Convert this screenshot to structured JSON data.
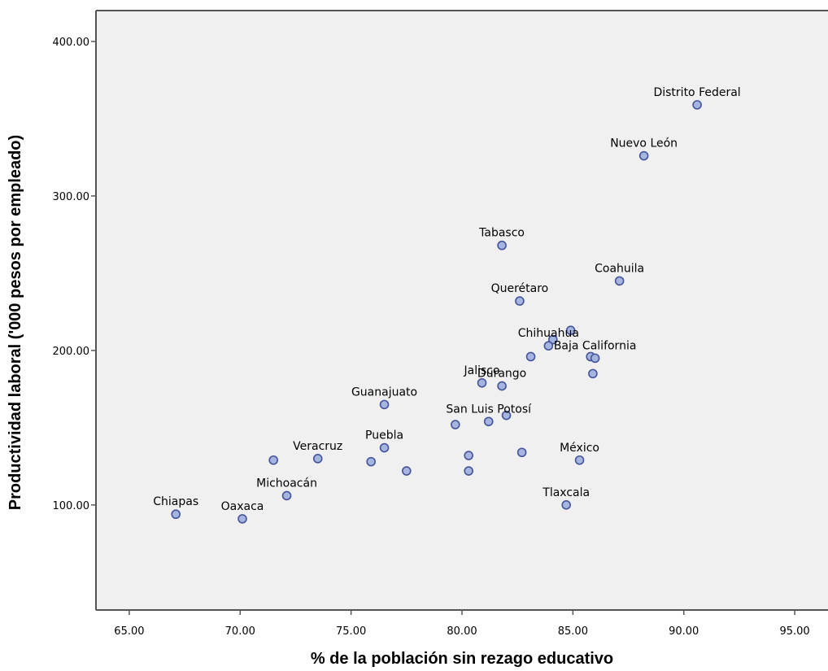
{
  "chart_data": {
    "type": "scatter",
    "xlabel": "% de la población sin rezago educativo",
    "ylabel": "Productividad laboral ('000 pesos por empleado)",
    "xlim": [
      63.5,
      96.5
    ],
    "ylim": [
      32,
      420
    ],
    "x_ticks": [
      "65.00",
      "70.00",
      "75.00",
      "80.00",
      "85.00",
      "90.00",
      "95.00"
    ],
    "y_ticks": [
      "100.00",
      "200.00",
      "300.00",
      "400.00"
    ],
    "grid": false,
    "colors": {
      "point_fill": "#a5b5e0",
      "point_stroke": "#44549a",
      "plot_bg": "#f0f0f0",
      "axis": "#555555"
    },
    "points": [
      {
        "x": 90.6,
        "y": 359,
        "label": "Distrito Federal"
      },
      {
        "x": 88.2,
        "y": 326,
        "label": "Nuevo León"
      },
      {
        "x": 81.8,
        "y": 268,
        "label": "Tabasco"
      },
      {
        "x": 87.1,
        "y": 245,
        "label": "Coahuila"
      },
      {
        "x": 82.6,
        "y": 232,
        "label": "Querétaro"
      },
      {
        "x": 84.9,
        "y": 213,
        "label": ""
      },
      {
        "x": 84.1,
        "y": 207,
        "label": ""
      },
      {
        "x": 83.9,
        "y": 203,
        "label": "Chihuahua"
      },
      {
        "x": 83.1,
        "y": 196,
        "label": ""
      },
      {
        "x": 85.8,
        "y": 196,
        "label": ""
      },
      {
        "x": 86.0,
        "y": 195,
        "label": "Baja California"
      },
      {
        "x": 85.9,
        "y": 185,
        "label": ""
      },
      {
        "x": 80.9,
        "y": 179,
        "label": "Jalisco"
      },
      {
        "x": 81.8,
        "y": 177,
        "label": "Durango"
      },
      {
        "x": 76.5,
        "y": 165,
        "label": "Guanajuato"
      },
      {
        "x": 82.0,
        "y": 158,
        "label": ""
      },
      {
        "x": 81.2,
        "y": 154,
        "label": "San Luis Potosí"
      },
      {
        "x": 79.7,
        "y": 152,
        "label": ""
      },
      {
        "x": 76.5,
        "y": 137,
        "label": "Puebla"
      },
      {
        "x": 82.7,
        "y": 134,
        "label": ""
      },
      {
        "x": 80.3,
        "y": 132,
        "label": ""
      },
      {
        "x": 73.5,
        "y": 130,
        "label": "Veracruz"
      },
      {
        "x": 85.3,
        "y": 129,
        "label": "México"
      },
      {
        "x": 71.5,
        "y": 129,
        "label": ""
      },
      {
        "x": 75.9,
        "y": 128,
        "label": ""
      },
      {
        "x": 77.5,
        "y": 122,
        "label": ""
      },
      {
        "x": 80.3,
        "y": 122,
        "label": ""
      },
      {
        "x": 72.1,
        "y": 106,
        "label": "Michoacán"
      },
      {
        "x": 84.7,
        "y": 100,
        "label": "Tlaxcala"
      },
      {
        "x": 67.1,
        "y": 94,
        "label": "Chiapas"
      },
      {
        "x": 70.1,
        "y": 91,
        "label": "Oaxaca"
      }
    ]
  }
}
